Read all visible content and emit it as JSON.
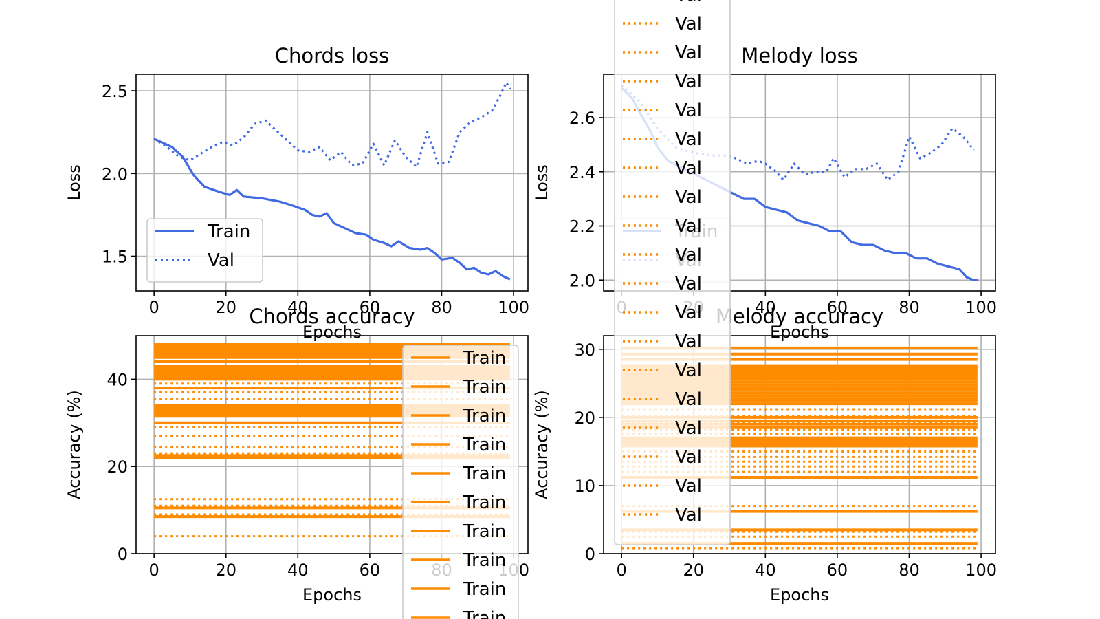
{
  "colors": {
    "loss": "#4169e1",
    "accuracy": "#ff8c00",
    "grid": "#b0b0b0",
    "legend_bg": "#ffffff"
  },
  "chart_data": [
    {
      "id": "chords_loss",
      "type": "line",
      "title": "Chords loss",
      "xlabel": "Epochs",
      "ylabel": "Loss",
      "xlim": [
        -5,
        104
      ],
      "ylim": [
        1.29,
        2.6
      ],
      "xticks": [
        0,
        20,
        40,
        60,
        80,
        100
      ],
      "yticks": [
        1.5,
        2.0,
        2.5
      ],
      "ytick_labels": [
        "1.5",
        "2.0",
        "2.5"
      ],
      "legend_position": "lower-left",
      "series": [
        {
          "name": "Train",
          "style": "solid",
          "points": [
            [
              0,
              2.21
            ],
            [
              5,
              2.16
            ],
            [
              8,
              2.1
            ],
            [
              11,
              1.99
            ],
            [
              14,
              1.92
            ],
            [
              18,
              1.89
            ],
            [
              21,
              1.87
            ],
            [
              23,
              1.9
            ],
            [
              25,
              1.86
            ],
            [
              30,
              1.85
            ],
            [
              35,
              1.83
            ],
            [
              38,
              1.81
            ],
            [
              42,
              1.78
            ],
            [
              44,
              1.75
            ],
            [
              46,
              1.74
            ],
            [
              48,
              1.76
            ],
            [
              50,
              1.7
            ],
            [
              53,
              1.67
            ],
            [
              56,
              1.64
            ],
            [
              59,
              1.63
            ],
            [
              61,
              1.6
            ],
            [
              64,
              1.58
            ],
            [
              66,
              1.56
            ],
            [
              68,
              1.59
            ],
            [
              71,
              1.55
            ],
            [
              74,
              1.54
            ],
            [
              76,
              1.55
            ],
            [
              78,
              1.52
            ],
            [
              80,
              1.48
            ],
            [
              83,
              1.49
            ],
            [
              85,
              1.46
            ],
            [
              87,
              1.42
            ],
            [
              89,
              1.43
            ],
            [
              91,
              1.4
            ],
            [
              93,
              1.39
            ],
            [
              95,
              1.41
            ],
            [
              97,
              1.38
            ],
            [
              99,
              1.36
            ]
          ]
        },
        {
          "name": "Val",
          "style": "dotted",
          "points": [
            [
              0,
              2.21
            ],
            [
              3,
              2.17
            ],
            [
              7,
              2.1
            ],
            [
              10,
              2.08
            ],
            [
              13,
              2.12
            ],
            [
              16,
              2.16
            ],
            [
              19,
              2.19
            ],
            [
              22,
              2.17
            ],
            [
              25,
              2.22
            ],
            [
              28,
              2.3
            ],
            [
              31,
              2.32
            ],
            [
              34,
              2.26
            ],
            [
              37,
              2.2
            ],
            [
              40,
              2.14
            ],
            [
              43,
              2.13
            ],
            [
              46,
              2.16
            ],
            [
              49,
              2.08
            ],
            [
              52,
              2.13
            ],
            [
              55,
              2.05
            ],
            [
              58,
              2.06
            ],
            [
              61,
              2.18
            ],
            [
              64,
              2.05
            ],
            [
              67,
              2.2
            ],
            [
              70,
              2.1
            ],
            [
              73,
              2.04
            ],
            [
              76,
              2.25
            ],
            [
              79,
              2.06
            ],
            [
              82,
              2.07
            ],
            [
              85,
              2.25
            ],
            [
              88,
              2.31
            ],
            [
              91,
              2.34
            ],
            [
              94,
              2.38
            ],
            [
              96,
              2.46
            ],
            [
              98,
              2.55
            ],
            [
              99,
              2.51
            ]
          ]
        }
      ]
    },
    {
      "id": "melody_loss",
      "type": "line",
      "title": "Melody loss",
      "xlabel": "Epochs",
      "ylabel": "Loss",
      "xlim": [
        -5,
        104
      ],
      "ylim": [
        1.96,
        2.76
      ],
      "xticks": [
        0,
        20,
        40,
        60,
        80,
        100
      ],
      "yticks": [
        2.0,
        2.2,
        2.4,
        2.6
      ],
      "ytick_labels": [
        "2.0",
        "2.2",
        "2.4",
        "2.6"
      ],
      "legend_position": "center-left",
      "series": [
        {
          "name": "Train",
          "style": "solid",
          "points": [
            [
              0,
              2.71
            ],
            [
              3,
              2.67
            ],
            [
              5,
              2.62
            ],
            [
              8,
              2.55
            ],
            [
              10,
              2.49
            ],
            [
              13,
              2.44
            ],
            [
              16,
              2.42
            ],
            [
              19,
              2.4
            ],
            [
              22,
              2.38
            ],
            [
              25,
              2.36
            ],
            [
              28,
              2.34
            ],
            [
              31,
              2.32
            ],
            [
              34,
              2.3
            ],
            [
              37,
              2.3
            ],
            [
              40,
              2.27
            ],
            [
              43,
              2.26
            ],
            [
              46,
              2.25
            ],
            [
              49,
              2.22
            ],
            [
              52,
              2.21
            ],
            [
              55,
              2.2
            ],
            [
              58,
              2.18
            ],
            [
              61,
              2.18
            ],
            [
              64,
              2.14
            ],
            [
              67,
              2.13
            ],
            [
              70,
              2.13
            ],
            [
              73,
              2.11
            ],
            [
              76,
              2.1
            ],
            [
              79,
              2.1
            ],
            [
              82,
              2.08
            ],
            [
              85,
              2.08
            ],
            [
              88,
              2.06
            ],
            [
              91,
              2.05
            ],
            [
              94,
              2.04
            ],
            [
              96,
              2.01
            ],
            [
              98,
              2.0
            ],
            [
              99,
              2.0
            ]
          ]
        },
        {
          "name": "Val",
          "style": "dotted",
          "points": [
            [
              0,
              2.72
            ],
            [
              5,
              2.66
            ],
            [
              10,
              2.56
            ],
            [
              15,
              2.49
            ],
            [
              20,
              2.47
            ],
            [
              25,
              2.46
            ],
            [
              30,
              2.46
            ],
            [
              35,
              2.43
            ],
            [
              38,
              2.44
            ],
            [
              40,
              2.43
            ],
            [
              43,
              2.4
            ],
            [
              45,
              2.37
            ],
            [
              48,
              2.43
            ],
            [
              51,
              2.39
            ],
            [
              54,
              2.4
            ],
            [
              57,
              2.4
            ],
            [
              59,
              2.45
            ],
            [
              62,
              2.38
            ],
            [
              65,
              2.41
            ],
            [
              68,
              2.41
            ],
            [
              71,
              2.43
            ],
            [
              74,
              2.37
            ],
            [
              77,
              2.4
            ],
            [
              80,
              2.53
            ],
            [
              83,
              2.45
            ],
            [
              86,
              2.47
            ],
            [
              89,
              2.5
            ],
            [
              92,
              2.56
            ],
            [
              95,
              2.53
            ],
            [
              98,
              2.48
            ]
          ]
        }
      ]
    },
    {
      "id": "chords_accuracy",
      "type": "line",
      "title": "Chords accuracy",
      "xlabel": "Epochs",
      "ylabel": "Accuracy (%)",
      "xlim": [
        -5,
        104
      ],
      "ylim": [
        0,
        50
      ],
      "xticks": [
        0,
        20,
        40,
        60,
        80,
        100
      ],
      "yticks": [
        0,
        20,
        40
      ],
      "ytick_labels": [
        "0",
        "20",
        "40"
      ],
      "x_range": [
        0,
        99
      ],
      "legend_position": "upper-right",
      "series": [
        {
          "name": "Train",
          "style": "solid",
          "constant_levels": [
            8.5,
            10.5,
            22,
            22.5,
            30,
            31.5,
            32,
            32.5,
            33,
            33.5,
            34,
            38,
            40,
            40.5,
            41,
            41.5,
            42,
            42.5,
            43,
            44,
            45,
            45.5,
            46,
            46.5,
            47,
            47.5,
            48
          ]
        },
        {
          "name": "Val",
          "style": "dotted",
          "constant_levels": [
            4,
            9,
            11,
            12.5,
            23,
            24.5,
            27,
            29,
            35.5,
            37,
            39
          ]
        }
      ],
      "legend_entries": [
        "Train",
        "Train",
        "Train",
        "Train",
        "Train",
        "Train",
        "Train",
        "Train",
        "Train",
        "Train"
      ]
    },
    {
      "id": "melody_accuracy",
      "type": "line",
      "title": "Melody accuracy",
      "xlabel": "Epochs",
      "ylabel": "Accuracy (%)",
      "xlim": [
        -5,
        104
      ],
      "ylim": [
        0,
        32
      ],
      "xticks": [
        0,
        20,
        40,
        60,
        80,
        100
      ],
      "yticks": [
        0,
        10,
        20,
        30
      ],
      "ytick_labels": [
        "0",
        "10",
        "20",
        "30"
      ],
      "x_range": [
        0,
        99
      ],
      "legend_position": "upper-left",
      "series": [
        {
          "name": "Train",
          "style": "solid",
          "constant_levels": [
            1.5,
            3.5,
            6.2,
            11.2,
            15.8,
            16.2,
            16.6,
            17,
            18.5,
            19,
            19.5,
            20,
            22,
            22.4,
            22.8,
            23.2,
            23.6,
            24,
            24.4,
            24.8,
            25.2,
            25.6,
            26,
            26.4,
            26.8,
            27.2,
            27.6,
            28.5,
            29.3,
            30.2
          ]
        },
        {
          "name": "Val",
          "style": "dotted",
          "constant_levels": [
            0.8,
            2.5,
            3.2,
            7,
            12,
            12.8,
            13.5,
            14.2,
            15,
            17.6,
            18.2,
            19.2,
            20.2,
            21.2,
            22.8
          ]
        }
      ],
      "legend_entries": [
        "Val",
        "Val",
        "Val",
        "Val",
        "Val",
        "Val",
        "Val",
        "Val",
        "Val",
        "Val",
        "Val",
        "Val",
        "Val",
        "Val",
        "Val",
        "Val",
        "Val",
        "Val",
        "Val"
      ]
    }
  ]
}
